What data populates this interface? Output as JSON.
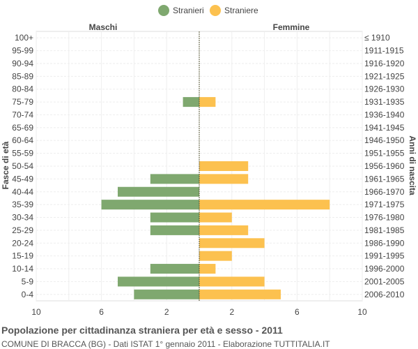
{
  "chart_data": {
    "type": "bar",
    "orientation": "horizontal-population-pyramid",
    "title": "Popolazione per cittadinanza straniera per età e sesso - 2011",
    "subtitle": "COMUNE DI BRACCA (BG) - Dati ISTAT 1° gennaio 2011 - Elaborazione TUTTITALIA.IT",
    "ylabel_left": "Fasce di età",
    "ylabel_right": "Anni di nascita",
    "left_header": "Maschi",
    "right_header": "Femmine",
    "legend_position": "top-center",
    "grid": true,
    "xlim": [
      -10,
      10
    ],
    "x_ticks": [
      "10",
      "6",
      "2",
      "2",
      "6",
      "10"
    ],
    "categories": [
      "100+",
      "95-99",
      "90-94",
      "85-89",
      "80-84",
      "75-79",
      "70-74",
      "65-69",
      "60-64",
      "55-59",
      "50-54",
      "45-49",
      "40-44",
      "35-39",
      "30-34",
      "25-29",
      "20-24",
      "15-19",
      "10-14",
      "5-9",
      "0-4"
    ],
    "birth_years": [
      "≤ 1910",
      "1911-1915",
      "1916-1920",
      "1921-1925",
      "1926-1930",
      "1931-1935",
      "1936-1940",
      "1941-1945",
      "1946-1950",
      "1951-1955",
      "1956-1960",
      "1961-1965",
      "1966-1970",
      "1971-1975",
      "1976-1980",
      "1981-1985",
      "1986-1990",
      "1991-1995",
      "1996-2000",
      "2001-2005",
      "2006-2010"
    ],
    "series": [
      {
        "name": "Stranieri",
        "color": "#7fa86f",
        "values": [
          0,
          0,
          0,
          0,
          0,
          1,
          0,
          0,
          0,
          0,
          0,
          3,
          5,
          6,
          3,
          3,
          0,
          0,
          3,
          5,
          4
        ]
      },
      {
        "name": "Straniere",
        "color": "#fcc14f",
        "values": [
          0,
          0,
          0,
          0,
          0,
          1,
          0,
          0,
          0,
          0,
          3,
          3,
          0,
          8,
          2,
          3,
          4,
          2,
          1,
          4,
          5
        ]
      }
    ]
  }
}
